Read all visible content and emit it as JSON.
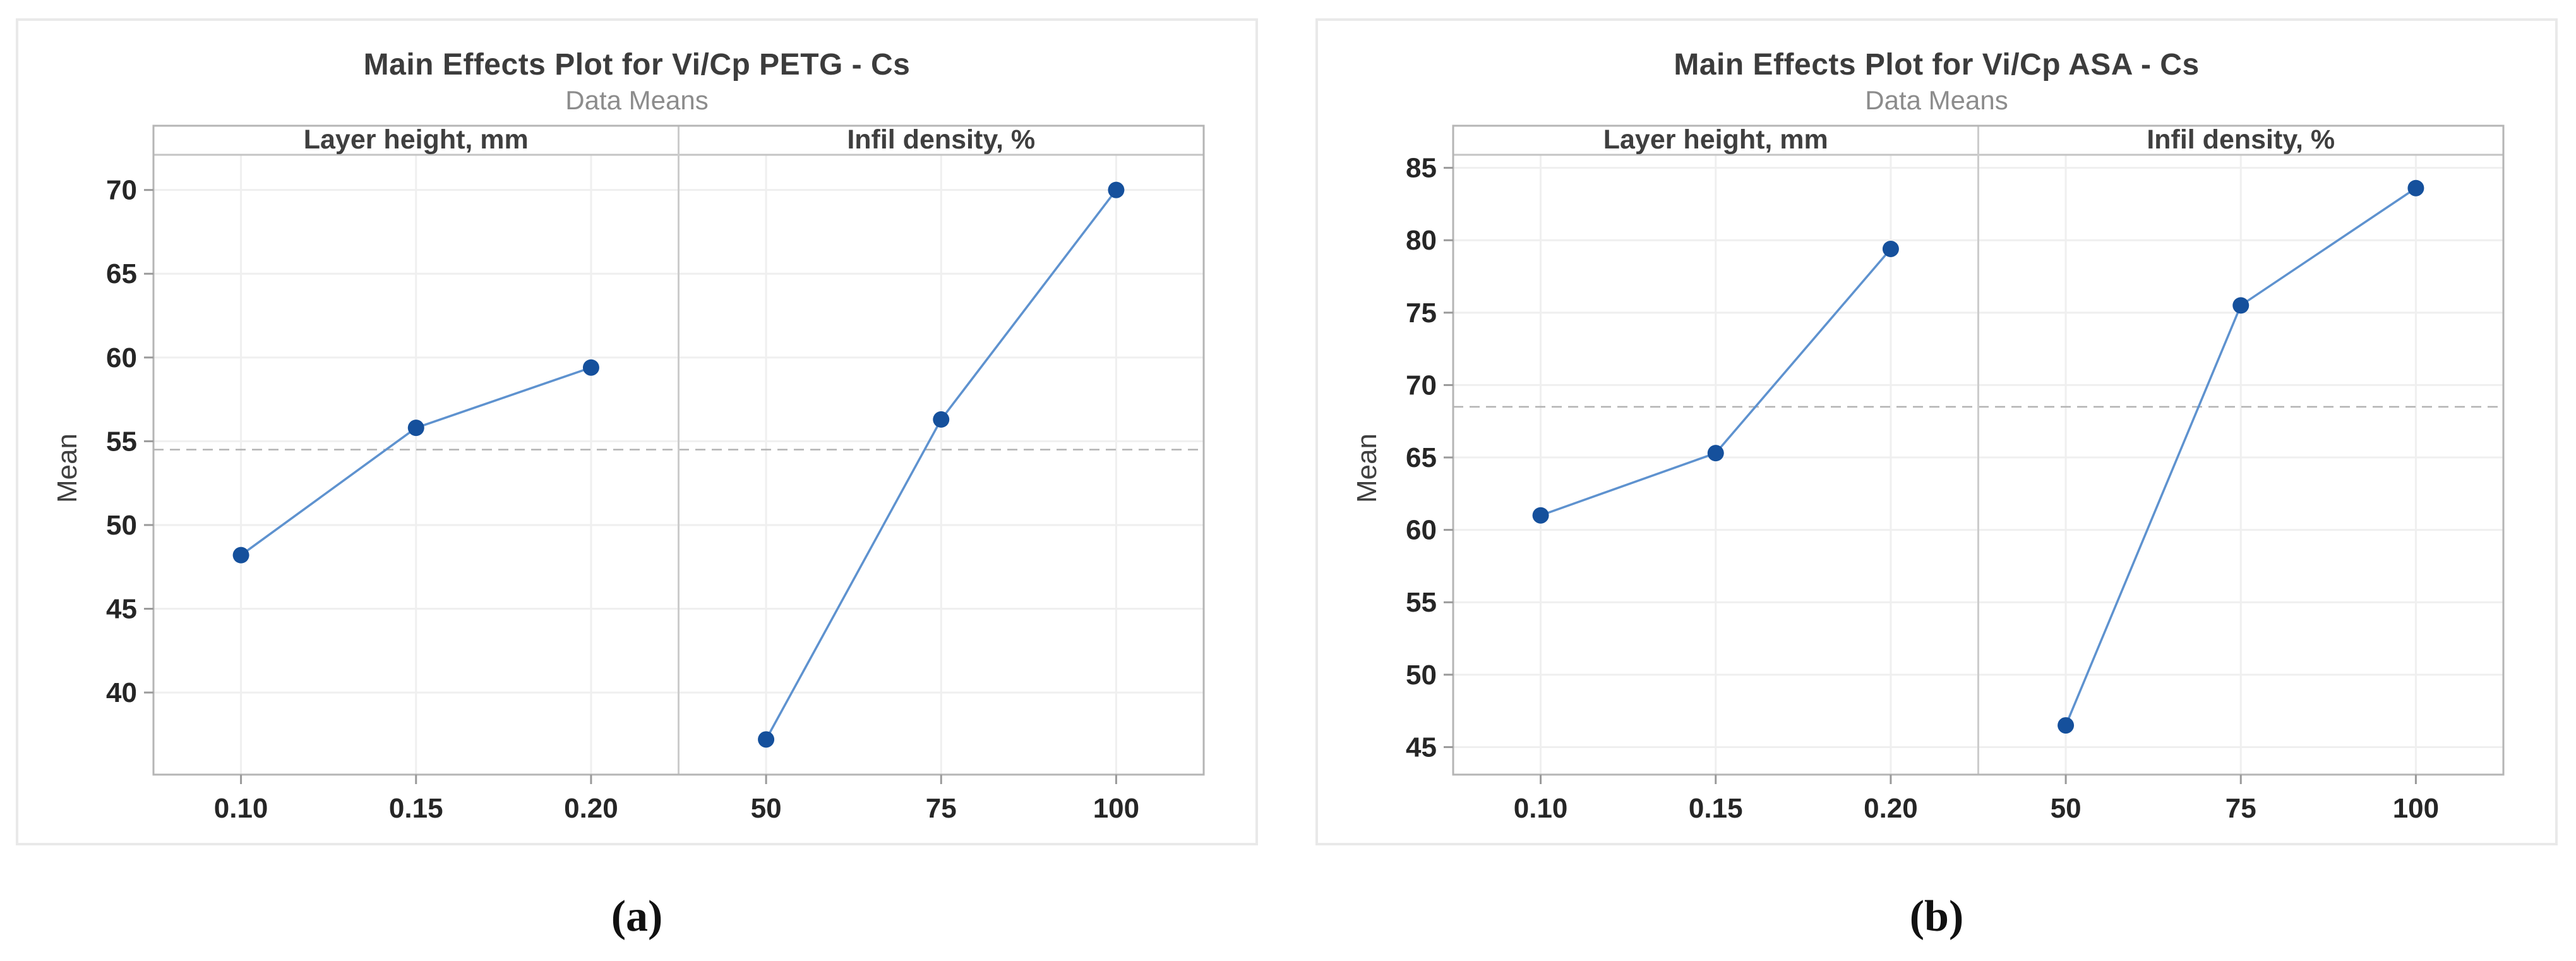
{
  "colors": {
    "marker": "#15509c",
    "line": "#5e92cf",
    "grid": "#efefef",
    "plot_border": "#b5b5b5",
    "panel_divider": "#cccccc",
    "strip_line": "#c4c4c4",
    "dashed_mean": "#b3b3b3",
    "tick_mark": "#9a9a9a",
    "tick_text": "#262626",
    "panel_text": "#3f3f3f",
    "title_text": "#3c3c3c",
    "subtitle_text": "#8c8c8c"
  },
  "chart_data": [
    {
      "type": "line",
      "caption": "(a)",
      "title": "Main Effects Plot for Vi/Cp PETG - Cs",
      "subtitle": "Data Means",
      "ylabel": "Mean",
      "yticks": [
        40,
        45,
        50,
        55,
        60,
        65,
        70
      ],
      "ylim": [
        35.1,
        72.1
      ],
      "grand_mean": 54.5,
      "grid": true,
      "panels": [
        {
          "label": "Layer height, mm",
          "categories": [
            "0.10",
            "0.15",
            "0.20"
          ],
          "values": [
            48.2,
            55.8,
            59.4
          ]
        },
        {
          "label": "Infil density, %",
          "categories": [
            "50",
            "75",
            "100"
          ],
          "values": [
            37.2,
            56.3,
            70.0
          ]
        }
      ]
    },
    {
      "type": "line",
      "caption": "(b)",
      "title": "Main Effects Plot for Vi/Cp ASA - Cs",
      "subtitle": "Data Means",
      "ylabel": "Mean",
      "yticks": [
        45,
        50,
        55,
        60,
        65,
        70,
        75,
        80,
        85
      ],
      "ylim": [
        43.1,
        85.9
      ],
      "grand_mean": 68.5,
      "grid": true,
      "panels": [
        {
          "label": "Layer height, mm",
          "categories": [
            "0.10",
            "0.15",
            "0.20"
          ],
          "values": [
            61.0,
            65.3,
            79.4
          ]
        },
        {
          "label": "Infil density, %",
          "categories": [
            "50",
            "75",
            "100"
          ],
          "values": [
            46.5,
            75.5,
            83.6
          ]
        }
      ]
    }
  ]
}
